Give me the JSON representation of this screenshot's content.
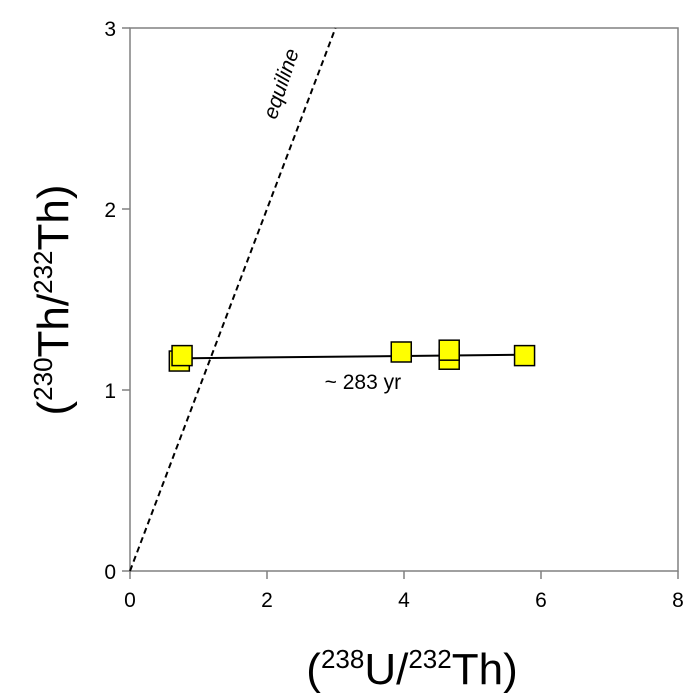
{
  "chart_data": {
    "type": "scatter",
    "x_axis": {
      "label_parts": [
        "(",
        "238",
        "U/",
        "232",
        "Th)"
      ],
      "range": [
        0,
        8
      ],
      "ticks": [
        0,
        2,
        4,
        6,
        8
      ]
    },
    "y_axis": {
      "label_parts": [
        "(",
        "230",
        "Th/",
        "232",
        "Th)"
      ],
      "range": [
        0,
        3
      ],
      "ticks": [
        0,
        1,
        2,
        3
      ]
    },
    "grid": false,
    "series": [
      {
        "marker": "square",
        "color": "#ffff00",
        "points": [
          {
            "x": 0.72,
            "y": 1.16
          },
          {
            "x": 0.76,
            "y": 1.19
          },
          {
            "x": 3.96,
            "y": 1.21
          },
          {
            "x": 4.66,
            "y": 1.17
          },
          {
            "x": 4.66,
            "y": 1.22
          },
          {
            "x": 5.76,
            "y": 1.19
          }
        ]
      }
    ],
    "lines": [
      {
        "style": "dashed",
        "from": [
          0,
          0
        ],
        "to": [
          3.0,
          3.0
        ],
        "label": "equiline"
      },
      {
        "style": "solid",
        "from": [
          0.72,
          1.175
        ],
        "to": [
          5.76,
          1.195
        ],
        "label": "~ 283 yr"
      }
    ]
  }
}
